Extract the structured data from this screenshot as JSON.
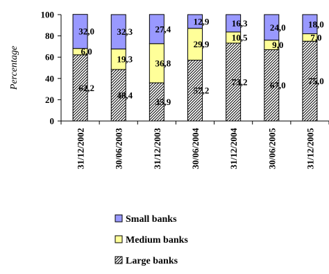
{
  "chart_data": {
    "type": "bar",
    "stacked": true,
    "ylabel": "Percentage",
    "xlabel": "",
    "ylim": [
      0,
      100
    ],
    "yticks": [
      0,
      20,
      40,
      60,
      80,
      100
    ],
    "grid": false,
    "legend_position": "bottom",
    "categories": [
      "31/12/2002",
      "30/06/2003",
      "31/12/2003",
      "30/06/2004",
      "31/12/2004",
      "30/06/2005",
      "31/12/2005"
    ],
    "series": [
      {
        "name": "Large banks",
        "values": [
          62.2,
          48.4,
          35.9,
          57.2,
          73.2,
          67.0,
          75.0
        ],
        "labels": [
          "62,2",
          "48,4",
          "35,9",
          "57,2",
          "73,2",
          "67,0",
          "75,0"
        ],
        "color": "#ffffff",
        "pattern": "diagonal-hatch"
      },
      {
        "name": "Medium banks",
        "values": [
          6.0,
          19.3,
          36.8,
          29.9,
          10.5,
          9.0,
          7.0
        ],
        "labels": [
          "6,0",
          "19,3",
          "36,8",
          "29,9",
          "10,5",
          "9,0",
          "7,0"
        ],
        "color": "#ffff99"
      },
      {
        "name": "Small banks",
        "values": [
          32.0,
          32.3,
          27.4,
          12.9,
          16.3,
          24.0,
          18.0
        ],
        "labels": [
          "32,0",
          "32,3",
          "27,4",
          "12,9",
          "16,3",
          "24,0",
          "18,0"
        ],
        "color": "#9999ff"
      }
    ],
    "legend_order": [
      "Small banks",
      "Medium banks",
      "Large banks"
    ]
  }
}
